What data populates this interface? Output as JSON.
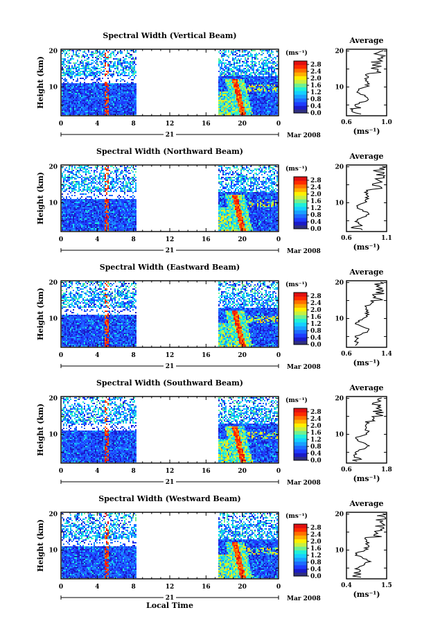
{
  "chart_data": {
    "type": "heatmap",
    "panels": [
      {
        "title": "Spectral Width (Vertical Beam)",
        "avg_min": 0.6,
        "avg_max": 1.0,
        "avg_ticks": [
          "0.6",
          "1.0"
        ]
      },
      {
        "title": "Spectral Width (Northward Beam)",
        "avg_min": 0.6,
        "avg_max": 1.1,
        "avg_ticks": [
          "0.6",
          "1.1"
        ]
      },
      {
        "title": "Spectral Width (Eastward Beam)",
        "avg_min": 0.6,
        "avg_max": 1.4,
        "avg_ticks": [
          "0.6",
          "1.4"
        ]
      },
      {
        "title": "Spectral Width (Southward Beam)",
        "avg_min": 0.6,
        "avg_max": 1.8,
        "avg_ticks": [
          "0.6",
          "1.8"
        ]
      },
      {
        "title": "Spectral Width (Westward Beam)",
        "avg_min": 0.4,
        "avg_max": 1.5,
        "avg_ticks": [
          "0.4",
          "1.5"
        ]
      }
    ],
    "xlabel": "Local Time",
    "ylabel": "Height (km)",
    "x_ticks": [
      "0",
      "4",
      "8",
      "12",
      "16",
      "20",
      "0"
    ],
    "x_range": [
      0,
      24
    ],
    "y_ticks": [
      "10",
      "20"
    ],
    "y_range": [
      2,
      20.5
    ],
    "date_day": "21",
    "date_label": "Mar 2008",
    "data_gap_hours": [
      8.3,
      17.3
    ],
    "colorbar_unit": "(ms⁻¹)",
    "colorbar_ticks": [
      "2.8",
      "2.4",
      "2.0",
      "1.6",
      "1.2",
      "0.8",
      "0.4",
      "0.0"
    ],
    "colorbar_range": [
      0.0,
      3.0
    ],
    "colorbar_colors": [
      "#303080",
      "#1b1bc8",
      "#1e3cff",
      "#1d6cff",
      "#19a0ff",
      "#14d0ff",
      "#20f0d8",
      "#70f090",
      "#c8f040",
      "#fff000",
      "#ffb000",
      "#ff7000",
      "#ff2a00",
      "#e01010"
    ],
    "avg_title": "Average",
    "avg_xlabel": "(ms⁻¹)"
  }
}
